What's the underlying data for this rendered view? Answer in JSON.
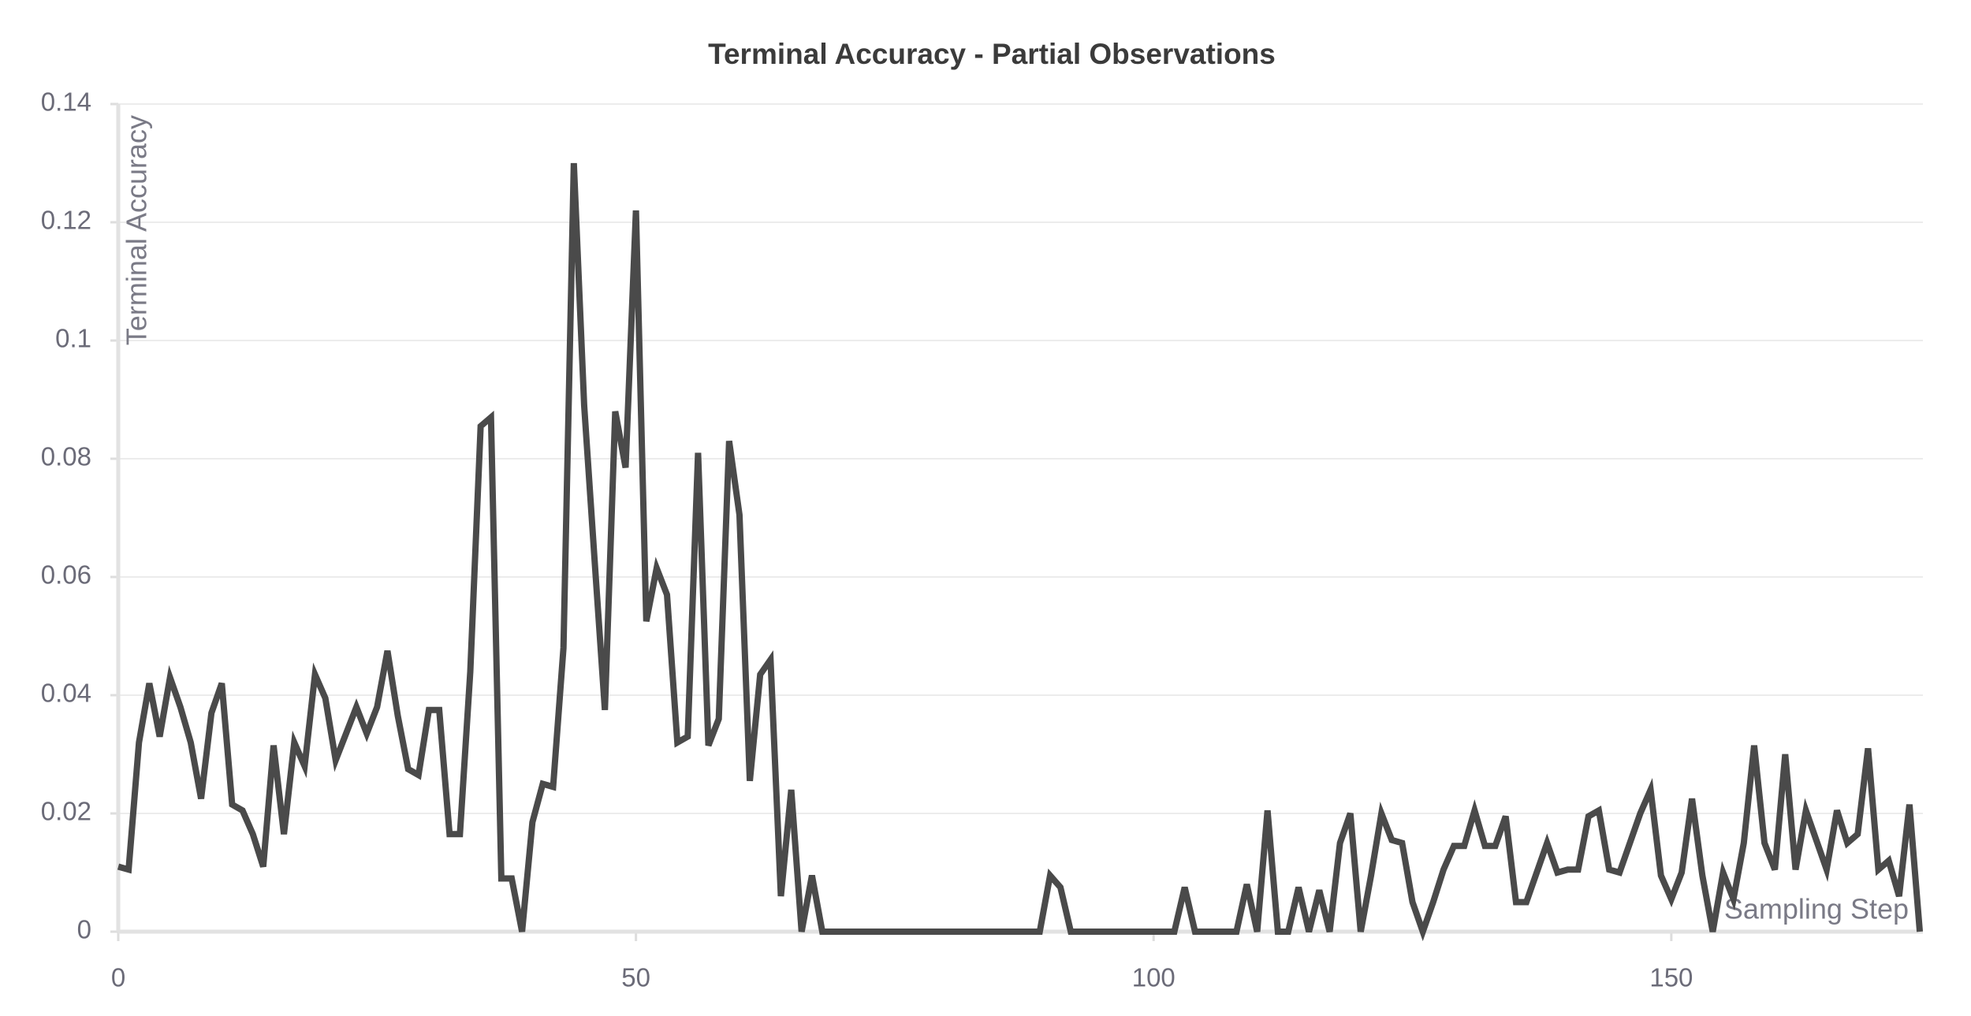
{
  "chart_data": {
    "type": "line",
    "title": "Terminal Accuracy - Partial Observations",
    "x_label": "Sampling Step",
    "y_label": "Terminal Accuracy",
    "x": [
      0,
      1,
      2,
      3,
      4,
      5,
      6,
      7,
      8,
      9,
      10,
      11,
      12,
      13,
      14,
      15,
      16,
      17,
      18,
      19,
      20,
      21,
      22,
      23,
      24,
      25,
      26,
      27,
      28,
      29,
      30,
      31,
      32,
      33,
      34,
      35,
      36,
      37,
      38,
      39,
      40,
      41,
      42,
      43,
      44,
      45,
      46,
      47,
      48,
      49,
      50,
      51,
      52,
      53,
      54,
      55,
      56,
      57,
      58,
      59,
      60,
      61,
      62,
      63,
      64,
      65,
      66,
      67,
      68,
      69,
      70,
      71,
      72,
      73,
      74,
      75,
      76,
      77,
      78,
      79,
      80,
      81,
      82,
      83,
      84,
      85,
      86,
      87,
      88,
      89,
      90,
      91,
      92,
      93,
      94,
      95,
      96,
      97,
      98,
      99,
      100,
      101,
      102,
      103,
      104,
      105,
      106,
      107,
      108,
      109,
      110,
      111,
      112,
      113,
      114,
      115,
      116,
      117,
      118,
      119,
      120,
      121,
      122,
      123,
      124,
      125,
      126,
      127,
      128,
      129,
      130,
      131,
      132,
      133,
      134,
      135,
      136,
      137,
      138,
      139,
      140,
      141,
      142,
      143,
      144,
      145,
      146,
      147,
      148,
      149,
      150,
      151,
      152,
      153,
      154,
      155,
      156,
      157,
      158,
      159,
      160,
      161,
      162,
      163,
      164,
      165,
      166,
      167,
      168,
      169,
      170,
      171,
      172,
      173,
      174
    ],
    "series": [
      {
        "name": "Terminal Accuracy",
        "color": "#4a4a4a",
        "values": [
          0.011,
          0.0105,
          0.032,
          0.042,
          0.033,
          0.043,
          0.038,
          0.032,
          0.0225,
          0.037,
          0.042,
          0.0215,
          0.0205,
          0.0165,
          0.011,
          0.0315,
          0.0165,
          0.032,
          0.028,
          0.0435,
          0.0395,
          0.029,
          0.0335,
          0.038,
          0.0335,
          0.038,
          0.0475,
          0.0365,
          0.0275,
          0.0265,
          0.0375,
          0.0375,
          0.0165,
          0.0165,
          0.044,
          0.0855,
          0.087,
          0.009,
          0.009,
          0,
          0.0185,
          0.025,
          0.0245,
          0.048,
          0.13,
          0.089,
          0.063,
          0.0375,
          0.088,
          0.0785,
          0.122,
          0.0525,
          0.0615,
          0.057,
          0.032,
          0.033,
          0.081,
          0.0315,
          0.036,
          0.083,
          0.0705,
          0.0255,
          0.0435,
          0.046,
          0.006,
          0.024,
          0,
          0.0095,
          0,
          0,
          0,
          0,
          0,
          0,
          0,
          0,
          0,
          0,
          0,
          0,
          0,
          0,
          0,
          0,
          0,
          0,
          0,
          0,
          0,
          0,
          0.0095,
          0.0075,
          0,
          0,
          0,
          0,
          0,
          0,
          0,
          0,
          0,
          0,
          0,
          0.0075,
          0,
          0,
          0,
          0,
          0,
          0.008,
          0,
          0.0205,
          0,
          0,
          0.0075,
          0,
          0.007,
          0,
          0.015,
          0.02,
          0,
          0.0095,
          0.02,
          0.0155,
          0.015,
          0.005,
          0,
          0.005,
          0.0105,
          0.0145,
          0.0145,
          0.0205,
          0.0145,
          0.0145,
          0.0195,
          0.005,
          0.005,
          0.01,
          0.015,
          0.01,
          0.0105,
          0.0105,
          0.0195,
          0.0205,
          0.0105,
          0.01,
          0.015,
          0.02,
          0.024,
          0.0095,
          0.0055,
          0.01,
          0.0225,
          0.0095,
          0,
          0.01,
          0.0055,
          0.015,
          0.0315,
          0.015,
          0.0105,
          0.03,
          0.0105,
          0.0205,
          0.0155,
          0.0105,
          0.0205,
          0.015,
          0.0165,
          0.031,
          0.0105,
          0.012,
          0.006,
          0.0215,
          0
        ]
      }
    ],
    "xlim": [
      0,
      174.3
    ],
    "xticks": [
      0,
      50,
      100,
      150
    ],
    "ylim": [
      0,
      0.14
    ],
    "yticks": [
      0,
      0.02,
      0.04,
      0.06,
      0.08,
      0.1,
      0.12,
      0.14
    ],
    "grid": true
  }
}
